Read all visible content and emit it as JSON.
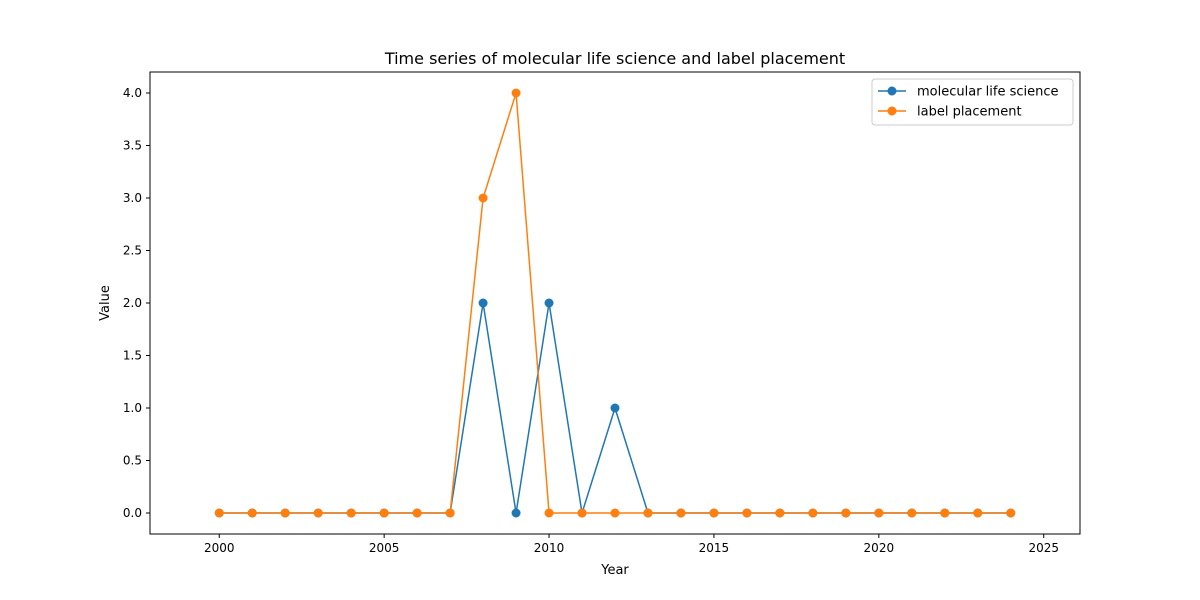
{
  "chart_data": {
    "type": "line",
    "title": "Time series of molecular life science and label placement",
    "xlabel": "Year",
    "ylabel": "Value",
    "xlim": [
      1997.9,
      2026.1
    ],
    "ylim": [
      -0.2,
      4.2
    ],
    "xticks": [
      2000,
      2005,
      2010,
      2015,
      2020,
      2025
    ],
    "yticks": [
      0.0,
      0.5,
      1.0,
      1.5,
      2.0,
      2.5,
      3.0,
      3.5,
      4.0
    ],
    "ytick_labels": [
      "0.0",
      "0.5",
      "1.0",
      "1.5",
      "2.0",
      "2.5",
      "3.0",
      "3.5",
      "4.0"
    ],
    "grid": false,
    "legend_position": "top-right",
    "x": [
      2000,
      2001,
      2002,
      2003,
      2004,
      2005,
      2006,
      2007,
      2008,
      2009,
      2010,
      2011,
      2012,
      2013,
      2014,
      2015,
      2016,
      2017,
      2018,
      2019,
      2020,
      2021,
      2022,
      2023,
      2024
    ],
    "series": [
      {
        "name": "molecular life science",
        "color": "#1f77b4",
        "values": [
          0,
          0,
          0,
          0,
          0,
          0,
          0,
          0,
          2,
          0,
          2,
          0,
          1,
          0,
          0,
          0,
          0,
          0,
          0,
          0,
          0,
          0,
          0,
          0,
          0
        ]
      },
      {
        "name": "label placement",
        "color": "#ff7f0e",
        "values": [
          0,
          0,
          0,
          0,
          0,
          0,
          0,
          0,
          3,
          4,
          0,
          0,
          0,
          0,
          0,
          0,
          0,
          0,
          0,
          0,
          0,
          0,
          0,
          0,
          0
        ]
      }
    ]
  }
}
